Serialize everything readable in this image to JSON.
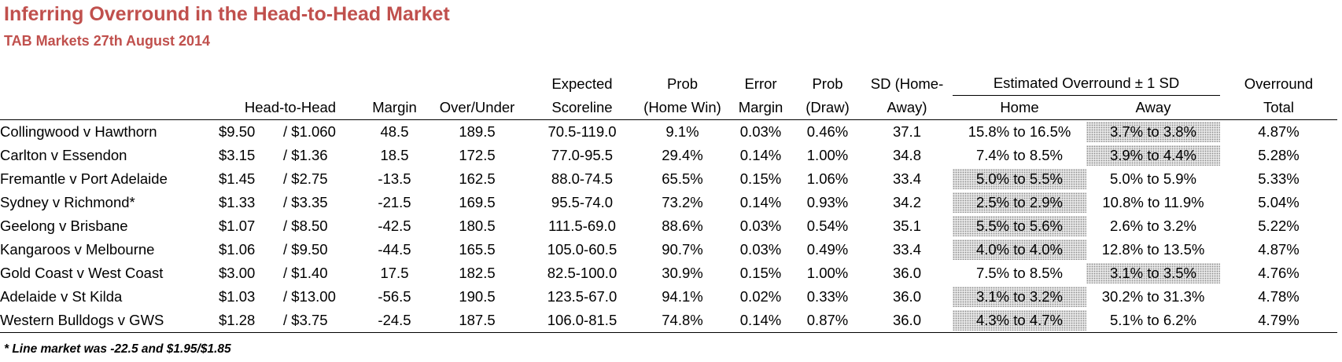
{
  "title": "Inferring Overround in the Head-to-Head Market",
  "subtitle": "TAB Markets 27th August 2014",
  "headers": {
    "h2h": "Head-to-Head",
    "margin": "Margin",
    "over_under": "Over/Under",
    "expected_1": "Expected",
    "expected_2": "Scoreline",
    "prob_home_1": "Prob",
    "prob_home_2": "(Home Win)",
    "error_1": "Error",
    "error_2": "Margin",
    "prob_draw_1": "Prob",
    "prob_draw_2": "(Draw)",
    "sd_1": "SD (Home-",
    "sd_2": "Away)",
    "estimated": "Estimated Overround ± 1 SD",
    "est_home": "Home",
    "est_away": "Away",
    "overround_1": "Overround",
    "overround_2": "Total"
  },
  "rows": [
    {
      "match": "Collingwood v Hawthorn",
      "home_price": "$9.50",
      "away_price": "$1.060",
      "margin": "48.5",
      "over_under": "189.5",
      "expected": "70.5-119.0",
      "prob_home": "9.1%",
      "error": "0.03%",
      "prob_draw": "0.46%",
      "sd": "37.1",
      "est_home": "15.8% to 16.5%",
      "est_away": "3.7% to 3.8%",
      "total": "4.87%",
      "highlight": "away",
      "bold_margin": false
    },
    {
      "match": "Carlton v Essendon",
      "home_price": "$3.15",
      "away_price": "$1.36",
      "margin": "18.5",
      "over_under": "172.5",
      "expected": "77.0-95.5",
      "prob_home": "29.4%",
      "error": "0.14%",
      "prob_draw": "1.00%",
      "sd": "34.8",
      "est_home": "7.4% to 8.5%",
      "est_away": "3.9% to 4.4%",
      "total": "5.28%",
      "highlight": "away",
      "bold_margin": false
    },
    {
      "match": "Fremantle v Port Adelaide",
      "home_price": "$1.45",
      "away_price": "$2.75",
      "margin": "-13.5",
      "over_under": "162.5",
      "expected": "88.0-74.5",
      "prob_home": "65.5%",
      "error": "0.15%",
      "prob_draw": "1.06%",
      "sd": "33.4",
      "est_home": "5.0% to 5.5%",
      "est_away": "5.0% to 5.9%",
      "total": "5.33%",
      "highlight": "home",
      "bold_margin": false
    },
    {
      "match": "Sydney v Richmond*",
      "home_price": "$1.33",
      "away_price": "$3.35",
      "margin": "-21.5",
      "over_under": "169.5",
      "expected": "95.5-74.0",
      "prob_home": "73.2%",
      "error": "0.14%",
      "prob_draw": "0.93%",
      "sd": "34.2",
      "est_home": "2.5% to 2.9%",
      "est_away": "10.8% to 11.9%",
      "total": "5.04%",
      "highlight": "home",
      "bold_margin": true
    },
    {
      "match": "Geelong v Brisbane",
      "home_price": "$1.07",
      "away_price": "$8.50",
      "margin": "-42.5",
      "over_under": "180.5",
      "expected": "111.5-69.0",
      "prob_home": "88.6%",
      "error": "0.03%",
      "prob_draw": "0.54%",
      "sd": "35.1",
      "est_home": "5.5% to 5.6%",
      "est_away": "2.6% to 3.2%",
      "total": "5.22%",
      "highlight": "home",
      "bold_margin": false
    },
    {
      "match": "Kangaroos v Melbourne",
      "home_price": "$1.06",
      "away_price": "$9.50",
      "margin": "-44.5",
      "over_under": "165.5",
      "expected": "105.0-60.5",
      "prob_home": "90.7%",
      "error": "0.03%",
      "prob_draw": "0.49%",
      "sd": "33.4",
      "est_home": "4.0% to 4.0%",
      "est_away": "12.8% to 13.5%",
      "total": "4.87%",
      "highlight": "home",
      "bold_margin": false
    },
    {
      "match": "Gold Coast v West Coast",
      "home_price": "$3.00",
      "away_price": "$1.40",
      "margin": "17.5",
      "over_under": "182.5",
      "expected": "82.5-100.0",
      "prob_home": "30.9%",
      "error": "0.15%",
      "prob_draw": "1.00%",
      "sd": "36.0",
      "est_home": "7.5% to 8.5%",
      "est_away": "3.1% to 3.5%",
      "total": "4.76%",
      "highlight": "away",
      "bold_margin": false
    },
    {
      "match": "Adelaide v St Kilda",
      "home_price": "$1.03",
      "away_price": "$13.00",
      "margin": "-56.5",
      "over_under": "190.5",
      "expected": "123.5-67.0",
      "prob_home": "94.1%",
      "error": "0.02%",
      "prob_draw": "0.33%",
      "sd": "36.0",
      "est_home": "3.1% to 3.2%",
      "est_away": "30.2% to 31.3%",
      "total": "4.78%",
      "highlight": "home",
      "bold_margin": false
    },
    {
      "match": "Western Bulldogs v GWS",
      "home_price": "$1.28",
      "away_price": "$3.75",
      "margin": "-24.5",
      "over_under": "187.5",
      "expected": "106.0-81.5",
      "prob_home": "74.8%",
      "error": "0.14%",
      "prob_draw": "0.87%",
      "sd": "36.0",
      "est_home": "4.3% to 4.7%",
      "est_away": "5.1% to 6.2%",
      "total": "4.79%",
      "highlight": "home",
      "bold_margin": false
    }
  ],
  "footnote": "* Line market was -22.5 and $1.95/$1.85",
  "colors": {
    "title": "#c0504d",
    "highlight_bg": "#e6e6e6",
    "highlight_dots": "#8c8c8c"
  }
}
